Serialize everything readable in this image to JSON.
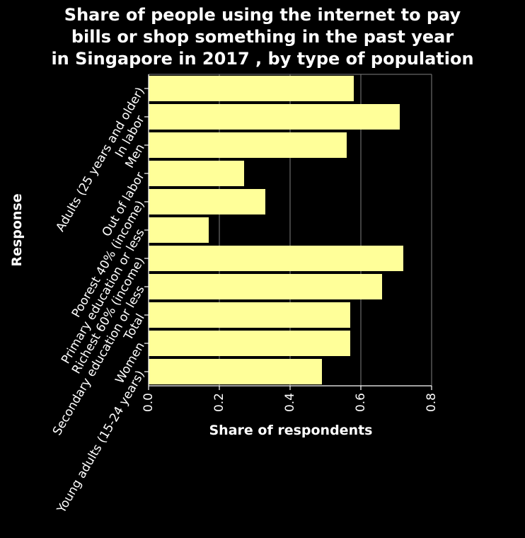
{
  "chart_data": {
    "type": "bar",
    "orientation": "horizontal",
    "title": "Share of people using the internet to pay bills or shop something in the past year in Singapore in 2017 , by type of population",
    "title_lines": [
      "Share of people using the internet to pay",
      "bills or shop something in the past year",
      "in Singapore in 2017 , by type of population"
    ],
    "xlabel": "Share of respondents",
    "ylabel": "Response",
    "xlim": [
      0,
      0.8
    ],
    "xticks": [
      "0.0",
      "0.2",
      "0.4",
      "0.6",
      "0.8"
    ],
    "grid": "vertical",
    "categories": [
      "Adults (25 years and older)",
      "In labor",
      "Men",
      "Out of labor",
      "Poorest 40% (income)",
      "Primary education or less",
      "Richest 60% (income)",
      "Secondary education or less",
      "Total",
      "Women",
      "Young adults (15-24 years)"
    ],
    "values": [
      0.58,
      0.71,
      0.56,
      0.27,
      0.33,
      0.17,
      0.72,
      0.66,
      0.57,
      0.57,
      0.49
    ],
    "colors": {
      "background": "#000000",
      "bar": "#ffff99",
      "axis": "#ffffff",
      "grid": "#808080"
    }
  }
}
